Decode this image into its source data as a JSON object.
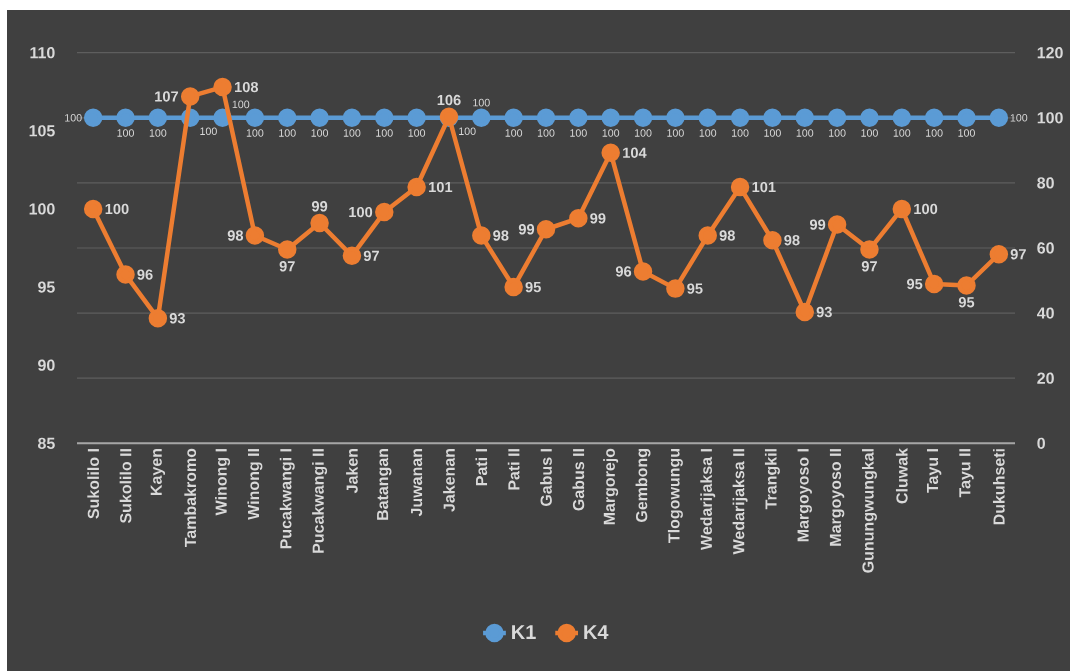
{
  "chart_data": {
    "type": "line",
    "categories": [
      "Sukolilo I",
      "Sukolilo II",
      "Kayen",
      "Tambakromo",
      "Winong I",
      "Winong II",
      "Pucakwangi I",
      "Pucakwangi II",
      "Jaken",
      "Batangan",
      "Juwanan",
      "Jakenan",
      "Pati I",
      "Pati II",
      "Gabus I",
      "Gabus II",
      "Margorejo",
      "Gembong",
      "Tlogowungu",
      "Wedarijaksa I",
      "Wedarijaksa II",
      "Trangkil",
      "Margoyoso I",
      "Margoyoso II",
      "Gunungwungkal",
      "Cluwak",
      "Tayu I",
      "Tayu II",
      "Dukuhseti"
    ],
    "series": [
      {
        "name": "K1",
        "color": "#5b9bd5",
        "axis": "y2",
        "values": [
          100,
          100,
          100,
          100,
          100,
          100,
          100,
          100,
          100,
          100,
          100,
          100,
          100,
          100,
          100,
          100,
          100,
          100,
          100,
          100,
          100,
          100,
          100,
          100,
          100,
          100,
          100,
          100,
          100
        ],
        "value_labels": [
          "100",
          "100",
          "100",
          "100",
          "100",
          "100",
          "100",
          "100",
          "100",
          "100",
          "100",
          "100",
          "100",
          "100",
          "100",
          "100",
          "100",
          "100",
          "100",
          "100",
          "100",
          "100",
          "100",
          "100",
          "100",
          "100",
          "100",
          "100",
          "100"
        ]
      },
      {
        "name": "K4",
        "color": "#ed7d31",
        "values": [
          100.0,
          95.8,
          93.0,
          107.2,
          107.8,
          98.3,
          97.4,
          99.1,
          97.0,
          99.8,
          101.4,
          105.9,
          98.3,
          95.0,
          98.7,
          99.4,
          103.6,
          96.0,
          94.9,
          98.3,
          101.4,
          98.0,
          93.4,
          99.0,
          97.4,
          100.0,
          95.2,
          95.1,
          97.1
        ],
        "value_labels": [
          "100",
          "96",
          "93",
          "107",
          "108",
          "98",
          "97",
          "99",
          "97",
          "100",
          "101",
          "106",
          "98",
          "95",
          "99",
          "99",
          "104",
          "96",
          "95",
          "98",
          "101",
          "98",
          "93",
          "99",
          "97",
          "100",
          "95",
          "95",
          "97"
        ]
      }
    ],
    "ylim": [
      85,
      110
    ],
    "yticks": [
      85,
      90,
      95,
      100,
      105,
      110
    ],
    "y2lim": [
      0,
      120
    ],
    "y2ticks": [
      0,
      20,
      40,
      60,
      80,
      100,
      120
    ],
    "grid": "y2",
    "legend": "bottom",
    "marker": "circle",
    "line_style": "solid"
  }
}
